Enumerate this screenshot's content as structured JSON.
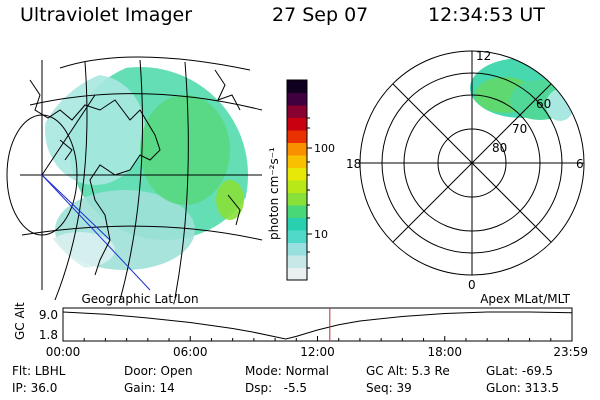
{
  "header": {
    "instrument": "Ultraviolet Imager",
    "date": "27 Sep 07",
    "time": "12:34:53 UT"
  },
  "colorbar": {
    "label": "photon cm⁻²s⁻¹",
    "ticks": [
      "100",
      "10"
    ],
    "colors": [
      "#e8f0f0",
      "#c8e8e8",
      "#98e0e0",
      "#50d8c8",
      "#28d0b0",
      "#48d878",
      "#88e038",
      "#b8e818",
      "#e8e808",
      "#f8c000",
      "#f89000",
      "#e83000",
      "#c80010",
      "#880030",
      "#400040",
      "#100020"
    ]
  },
  "geo_map": {
    "projection_label": "Geographic Lat/Lon",
    "aurora_color": "#48d8a8"
  },
  "polar_map": {
    "projection_label": "Apex MLat/MLT",
    "mlt_labels": [
      "12",
      "18",
      "6",
      "0"
    ],
    "mlat_labels": [
      "60",
      "70",
      "80"
    ]
  },
  "chart_data": {
    "type": "line",
    "title": "GC Alt",
    "ylabel": "GC Alt",
    "y_ticks": [
      "9.0",
      "1.8"
    ],
    "ylim": [
      1.8,
      9.0
    ],
    "x_ticks": [
      "00:00",
      "06:00",
      "12:00",
      "18:00",
      "23:59"
    ],
    "xlim_hours": [
      0,
      24
    ],
    "series": [
      {
        "name": "GC Alt",
        "x": [
          0,
          2,
          4,
          6,
          8,
          9,
          10,
          10.5,
          11,
          12,
          13,
          14,
          16,
          18,
          20,
          22,
          24
        ],
        "values": [
          9.0,
          8.4,
          7.4,
          6.2,
          4.6,
          3.6,
          2.4,
          1.8,
          2.5,
          4.2,
          5.6,
          6.6,
          7.8,
          8.6,
          9.0,
          9.0,
          8.8
        ]
      }
    ],
    "marker_hour": 12.58
  },
  "info": {
    "flt_label": "Flt:",
    "flt_value": "LBHL",
    "ip_label": "IP:",
    "ip_value": "36.0",
    "door_label": "Door:",
    "door_value": "Open",
    "gain_label": "Gain:",
    "gain_value": "14",
    "mode_label": "Mode:",
    "mode_value": "Normal",
    "dsp_label": "Dsp:",
    "dsp_value": "-5.5",
    "gcalt_label": "GC Alt:",
    "gcalt_value": "5.3 Re",
    "seq_label": "Seq:",
    "seq_value": "39",
    "glat_label": "GLat:",
    "glat_value": "-69.5",
    "glon_label": "GLon:",
    "glon_value": "313.5"
  }
}
